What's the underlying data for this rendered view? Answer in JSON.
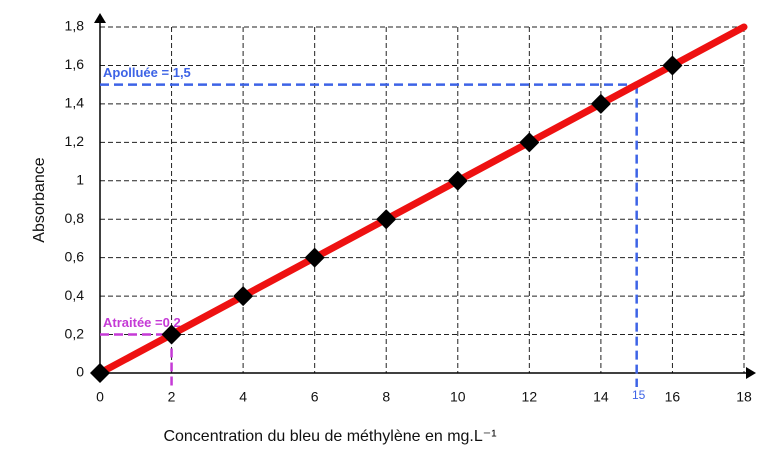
{
  "chart_data": {
    "type": "scatter",
    "x_label": "Concentration du bleu de méthylène en mg.L⁻¹",
    "y_label": "Absorbance",
    "x": [
      0,
      2,
      4,
      6,
      8,
      10,
      12,
      14,
      16
    ],
    "values": [
      0,
      0.2,
      0.4,
      0.6,
      0.8,
      1,
      1.2,
      1.4,
      1.6
    ],
    "marker_color": "#000000",
    "fit_line": {
      "x": [
        0,
        18
      ],
      "values": [
        0,
        1.8
      ],
      "color": "#ee1111"
    },
    "xlim": [
      0,
      18
    ],
    "xticks": [
      0,
      2,
      4,
      6,
      8,
      10,
      12,
      14,
      16,
      18
    ],
    "ylim": [
      0,
      1.8
    ],
    "yticks": [
      0,
      {
        "value": 0.2,
        "label": "0,2"
      },
      {
        "value": 0.4,
        "label": "0,4"
      },
      {
        "value": 0.6,
        "label": "0,6"
      },
      {
        "value": 0.8,
        "label": "0,8"
      },
      1,
      {
        "value": 1.2,
        "label": "1,2"
      },
      {
        "value": 1.4,
        "label": "1,4"
      },
      {
        "value": 1.6,
        "label": "1,6"
      },
      {
        "value": 1.8,
        "label": "1,8"
      }
    ],
    "grid": true,
    "guides": [
      {
        "label": "Apolluée = 1,5",
        "x": 15,
        "y": 1.5,
        "color": "#3d63e6",
        "print_x": true
      },
      {
        "label": "Atraitée =0,2",
        "x": 2,
        "y": 0.2,
        "color": "#c53ad6",
        "print_x": false
      }
    ]
  }
}
